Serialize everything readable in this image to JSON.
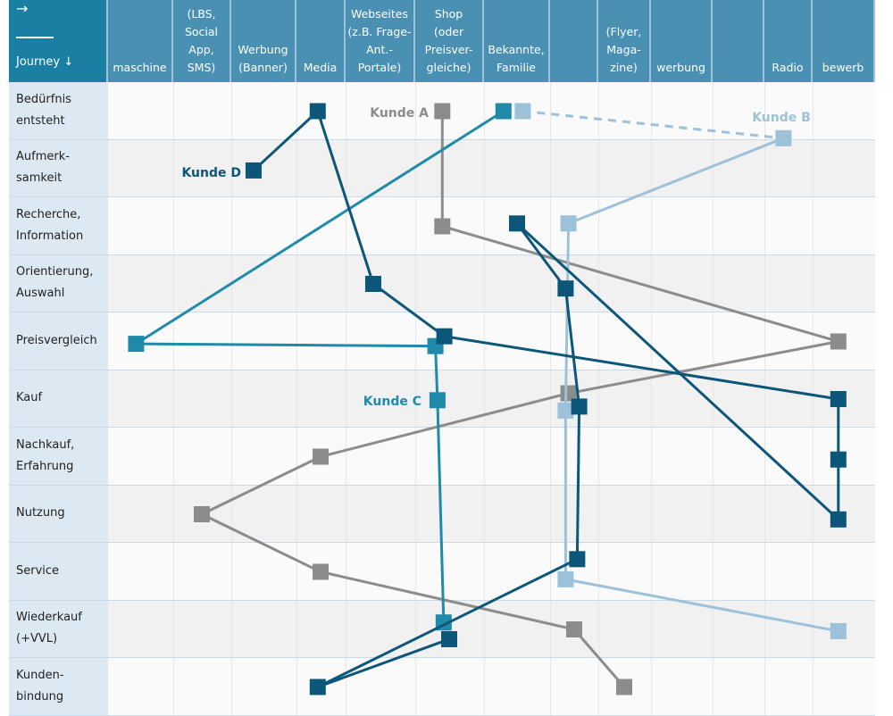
{
  "header": {
    "corner_arrow": "→",
    "corner_label": "Journey ↓",
    "columns": [
      "maschine",
      "(LBS,\nSocial\nApp,\nSMS)",
      "Werbung\n(Banner)",
      "Media",
      "Webseites\n(z.B. Frage-\nAnt.-\nPortale)",
      "Shop\n(oder\nPreisver-\ngleiche)",
      "Bekannte,\nFamilie",
      "",
      "(Flyer,\nMaga-\nzine)",
      "werbung",
      "",
      "Radio",
      "bewerb"
    ]
  },
  "rows": [
    "Bedürfnis\nentsteht",
    "Aufmerk-\nsamkeit",
    "Recherche,\nInformation",
    "Orientierung,\nAuswahl",
    "Preisvergleich",
    "Kauf",
    "Nachkauf,\nErfahrung",
    "Nutzung",
    "Service",
    "Wiederkauf\n(+VVL)",
    "Kunden-\nbindung"
  ],
  "colors": {
    "header": "#4a90b2",
    "header_corner": "#1a7fa3",
    "row_label_bg": "#dce9f3"
  },
  "chart_data": {
    "type": "line",
    "x_axis": "channel column index (1 = first channel column)",
    "y_axis": "journey row index (0 = Bedürfnis entsteht)",
    "series": [
      {
        "name": "Kunde A",
        "color": "#8c8c8c",
        "dashed_first_segment": false,
        "points": [
          [
            5.9,
            0
          ],
          [
            5.9,
            2
          ],
          [
            12.9,
            4
          ],
          [
            7.9,
            4.9
          ],
          [
            4,
            6
          ],
          [
            2,
            7
          ],
          [
            4,
            8
          ],
          [
            8,
            9
          ],
          [
            9,
            10
          ]
        ]
      },
      {
        "name": "Kunde B",
        "color": "#9dc1d9",
        "dashed_first_segment": true,
        "points": [
          [
            7.1,
            0
          ],
          [
            11.9,
            0.47
          ],
          [
            7.9,
            1.95
          ],
          [
            7.85,
            5.2
          ],
          [
            7.85,
            8.13
          ],
          [
            12.9,
            9.03
          ]
        ]
      },
      {
        "name": "Kunde C",
        "color": "#1f8aaa",
        "dashed_first_segment": false,
        "points": [
          [
            6.8,
            0
          ],
          [
            0.95,
            4.04
          ],
          [
            5.8,
            4.08
          ],
          [
            5.83,
            5.02
          ],
          [
            5.92,
            8.88
          ]
        ]
      },
      {
        "name": "Kunde D",
        "color": "#0c5679",
        "dashed_first_segment": false,
        "points": [
          [
            2.84,
            1.03
          ],
          [
            3.95,
            0
          ],
          [
            4.88,
            3
          ],
          [
            5.93,
            3.91
          ],
          [
            12.9,
            5
          ],
          [
            12.9,
            6.05
          ],
          [
            12.9,
            7.09
          ],
          [
            7,
            1.95
          ],
          [
            7.85,
            3.08
          ],
          [
            8.1,
            5.13
          ],
          [
            8.06,
            7.78
          ],
          [
            3.95,
            10
          ],
          [
            6,
            9.17
          ]
        ]
      }
    ]
  }
}
